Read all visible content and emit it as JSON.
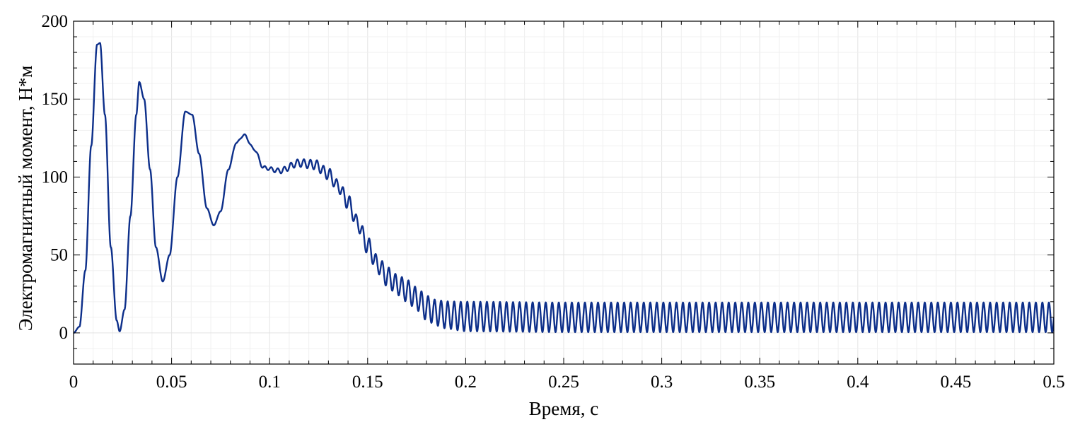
{
  "chart_data": {
    "type": "line",
    "title": "",
    "xlabel": "Время, с",
    "ylabel": "Электромагнитный момент, Н*м",
    "xlim": [
      0,
      0.5
    ],
    "ylim": [
      -20,
      200
    ],
    "xticks": [
      "0",
      "0.05",
      "0.1",
      "0.15",
      "0.2",
      "0.25",
      "0.3",
      "0.35",
      "0.4",
      "0.45",
      "0.5"
    ],
    "yticks": [
      "0",
      "50",
      "100",
      "150",
      "200"
    ],
    "xtick_values": [
      0,
      0.05,
      0.1,
      0.15,
      0.2,
      0.25,
      0.3,
      0.35,
      0.4,
      0.45,
      0.5
    ],
    "ytick_values": [
      0,
      50,
      100,
      150,
      200
    ],
    "grid": true,
    "line_color": "#0d2f8a",
    "series": [
      {
        "envelope_keypoints": [
          [
            0.0,
            0
          ],
          [
            0.003,
            4
          ],
          [
            0.006,
            40
          ],
          [
            0.009,
            120
          ],
          [
            0.012,
            185
          ],
          [
            0.0135,
            186
          ],
          [
            0.016,
            140
          ],
          [
            0.019,
            55
          ],
          [
            0.022,
            8
          ],
          [
            0.0235,
            1
          ],
          [
            0.026,
            15
          ],
          [
            0.029,
            75
          ],
          [
            0.032,
            140
          ],
          [
            0.0335,
            161
          ],
          [
            0.036,
            150
          ],
          [
            0.039,
            105
          ],
          [
            0.042,
            55
          ],
          [
            0.0455,
            33
          ],
          [
            0.049,
            50
          ],
          [
            0.053,
            100
          ],
          [
            0.057,
            142
          ],
          [
            0.0605,
            140
          ],
          [
            0.064,
            115
          ],
          [
            0.068,
            80
          ],
          [
            0.0715,
            69
          ],
          [
            0.075,
            78
          ],
          [
            0.079,
            105
          ],
          [
            0.083,
            122
          ],
          [
            0.087,
            127
          ],
          [
            0.092,
            118
          ],
          [
            0.097,
            106
          ],
          [
            0.105,
            104
          ],
          [
            0.115,
            109
          ],
          [
            0.123,
            108
          ],
          [
            0.13,
            102
          ],
          [
            0.135,
            94
          ],
          [
            0.14,
            84
          ],
          [
            0.145,
            70
          ],
          [
            0.15,
            56
          ],
          [
            0.155,
            44
          ],
          [
            0.16,
            36
          ],
          [
            0.165,
            31
          ],
          [
            0.17,
            27
          ],
          [
            0.175,
            22
          ],
          [
            0.18,
            16
          ],
          [
            0.185,
            13
          ],
          [
            0.19,
            11.5
          ],
          [
            0.2,
            10.5
          ],
          [
            0.25,
            10
          ],
          [
            0.5,
            10
          ]
        ],
        "ripple_frequency_hz": 300,
        "ripple_amplitude_start": 1.2,
        "ripple_amplitude_steady": 9.5,
        "ripple_onset_s": 0.075
      }
    ]
  }
}
